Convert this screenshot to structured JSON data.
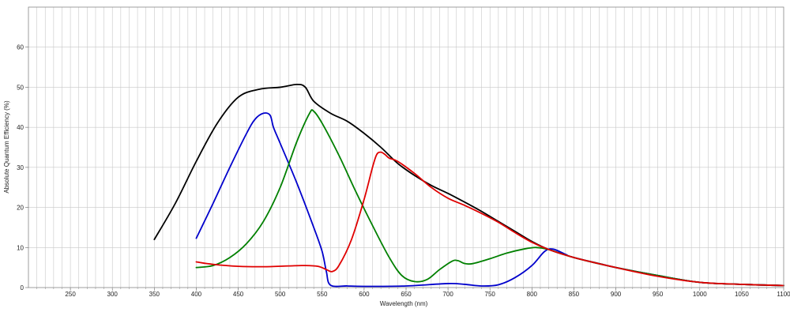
{
  "chart_data": {
    "type": "line",
    "xlabel": "Wavelength (nm)",
    "ylabel": "Absolute Quantum Efficiency (%)",
    "xlim": [
      200,
      1100
    ],
    "ylim": [
      0,
      70
    ],
    "x_ticks": [
      250,
      300,
      350,
      400,
      450,
      500,
      550,
      600,
      650,
      700,
      750,
      800,
      850,
      900,
      950,
      1000,
      1050,
      1100
    ],
    "y_ticks": [
      0,
      10,
      20,
      30,
      40,
      50,
      60
    ],
    "x_minor_step": 10,
    "grid": true,
    "series": [
      {
        "color": "#000000",
        "points": [
          [
            350,
            12
          ],
          [
            375,
            21
          ],
          [
            400,
            31.5
          ],
          [
            425,
            41
          ],
          [
            450,
            47.5
          ],
          [
            475,
            49.5
          ],
          [
            500,
            50
          ],
          [
            520,
            50.7
          ],
          [
            530,
            50
          ],
          [
            540,
            46.5
          ],
          [
            560,
            43.5
          ],
          [
            580,
            41.5
          ],
          [
            600,
            38.5
          ],
          [
            620,
            35
          ],
          [
            640,
            31
          ],
          [
            660,
            28
          ],
          [
            680,
            25.5
          ],
          [
            700,
            23.5
          ],
          [
            720,
            21.3
          ],
          [
            740,
            19
          ],
          [
            760,
            16.5
          ],
          [
            780,
            14
          ],
          [
            800,
            11.5
          ],
          [
            820,
            9.5
          ],
          [
            850,
            7.5
          ],
          [
            880,
            6
          ],
          [
            900,
            5
          ],
          [
            950,
            3
          ],
          [
            1000,
            1.3
          ],
          [
            1050,
            0.8
          ],
          [
            1100,
            0.5
          ]
        ]
      },
      {
        "color": "#0000cc",
        "points": [
          [
            400,
            12.3
          ],
          [
            420,
            21
          ],
          [
            440,
            30
          ],
          [
            460,
            38.5
          ],
          [
            470,
            42
          ],
          [
            480,
            43.5
          ],
          [
            488,
            43
          ],
          [
            492,
            40
          ],
          [
            500,
            36
          ],
          [
            520,
            26
          ],
          [
            540,
            15
          ],
          [
            550,
            9
          ],
          [
            555,
            4
          ],
          [
            560,
            0.6
          ],
          [
            580,
            0.4
          ],
          [
            600,
            0.3
          ],
          [
            650,
            0.4
          ],
          [
            700,
            1
          ],
          [
            720,
            0.8
          ],
          [
            740,
            0.4
          ],
          [
            760,
            0.7
          ],
          [
            780,
            2.5
          ],
          [
            800,
            5.5
          ],
          [
            815,
            9
          ],
          [
            825,
            9.6
          ],
          [
            840,
            8.3
          ],
          [
            850,
            7.5
          ],
          [
            900,
            5
          ],
          [
            950,
            3
          ],
          [
            1000,
            1.3
          ],
          [
            1050,
            0.8
          ],
          [
            1100,
            0.5
          ]
        ]
      },
      {
        "color": "#008000",
        "points": [
          [
            400,
            5
          ],
          [
            420,
            5.5
          ],
          [
            440,
            7.5
          ],
          [
            460,
            11
          ],
          [
            480,
            16.5
          ],
          [
            500,
            25
          ],
          [
            520,
            36.5
          ],
          [
            535,
            43.5
          ],
          [
            540,
            44
          ],
          [
            550,
            41
          ],
          [
            570,
            33
          ],
          [
            590,
            24
          ],
          [
            610,
            15.5
          ],
          [
            630,
            7.5
          ],
          [
            645,
            3
          ],
          [
            660,
            1.5
          ],
          [
            675,
            2
          ],
          [
            690,
            4.5
          ],
          [
            705,
            6.6
          ],
          [
            712,
            6.7
          ],
          [
            720,
            6
          ],
          [
            730,
            6
          ],
          [
            750,
            7.2
          ],
          [
            770,
            8.6
          ],
          [
            790,
            9.6
          ],
          [
            805,
            10
          ],
          [
            820,
            9.5
          ],
          [
            850,
            7.5
          ],
          [
            900,
            5
          ],
          [
            950,
            3
          ],
          [
            1000,
            1.3
          ],
          [
            1050,
            0.8
          ],
          [
            1100,
            0.5
          ]
        ]
      },
      {
        "color": "#e00000",
        "points": [
          [
            400,
            6.4
          ],
          [
            420,
            5.8
          ],
          [
            450,
            5.3
          ],
          [
            480,
            5.2
          ],
          [
            510,
            5.4
          ],
          [
            530,
            5.5
          ],
          [
            545,
            5.3
          ],
          [
            555,
            4.5
          ],
          [
            562,
            4
          ],
          [
            570,
            5.5
          ],
          [
            585,
            12
          ],
          [
            600,
            22
          ],
          [
            610,
            30
          ],
          [
            615,
            33.2
          ],
          [
            620,
            33.8
          ],
          [
            625,
            33.2
          ],
          [
            630,
            32.3
          ],
          [
            640,
            31.5
          ],
          [
            660,
            28.5
          ],
          [
            680,
            25
          ],
          [
            700,
            22.3
          ],
          [
            720,
            20.5
          ],
          [
            740,
            18.5
          ],
          [
            760,
            16.3
          ],
          [
            780,
            13.7
          ],
          [
            800,
            11.3
          ],
          [
            820,
            9.5
          ],
          [
            850,
            7.5
          ],
          [
            900,
            5
          ],
          [
            950,
            2.8
          ],
          [
            1000,
            1.3
          ],
          [
            1050,
            0.8
          ],
          [
            1100,
            0.5
          ]
        ]
      }
    ]
  }
}
